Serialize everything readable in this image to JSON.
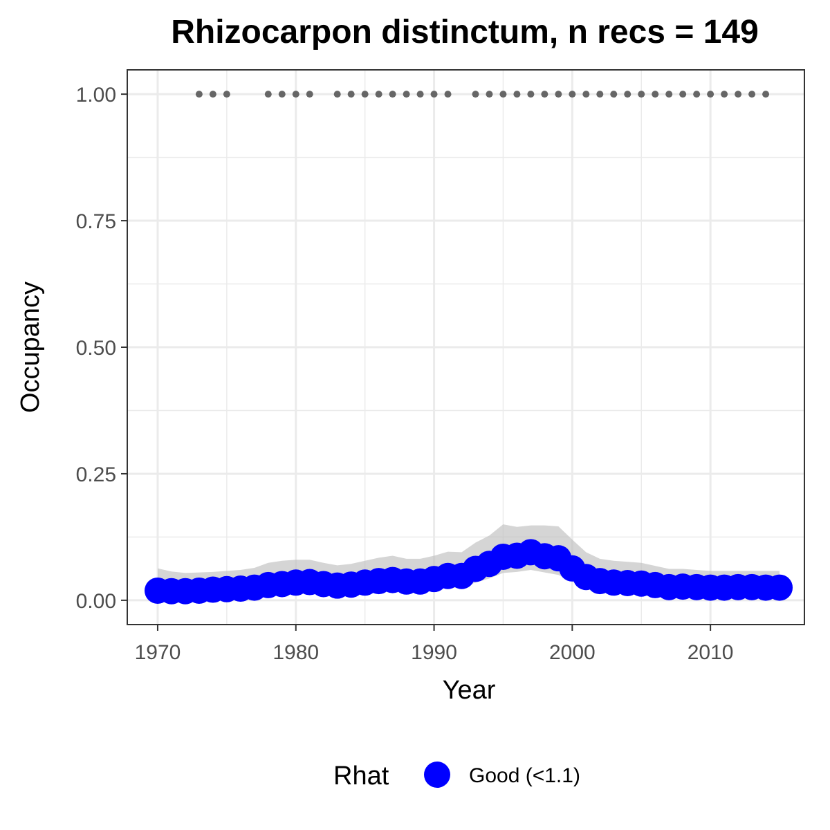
{
  "chart_data": {
    "type": "line",
    "title": "Rhizocarpon distinctum, n recs = 149",
    "xlabel": "Year",
    "ylabel": "Occupancy",
    "xlim": [
      1967.8,
      2016.8
    ],
    "ylim": [
      -0.048,
      1.048
    ],
    "x_ticks": [
      1970,
      1980,
      1990,
      2000,
      2010
    ],
    "x_tick_labels": [
      "1970",
      "1980",
      "1990",
      "2000",
      "2010"
    ],
    "y_ticks": [
      0,
      0.25,
      0.5,
      0.75,
      1.0
    ],
    "y_tick_labels": [
      "0.00",
      "0.25",
      "0.50",
      "0.75",
      "1.00"
    ],
    "grid": true,
    "legend": {
      "title": "Rhat",
      "position": "bottom",
      "entries": [
        {
          "label": "Good (<1.1)",
          "color": "#0000ff"
        }
      ]
    },
    "colors": {
      "points": "#0000ff",
      "ribbon": "#bebebe",
      "records": "#666666",
      "panel_border": "#333333",
      "grid": "#ebebeb"
    },
    "series": [
      {
        "name": "Good (<1.1)",
        "x": [
          1970,
          1971,
          1972,
          1973,
          1974,
          1975,
          1976,
          1977,
          1978,
          1979,
          1980,
          1981,
          1982,
          1983,
          1984,
          1985,
          1986,
          1987,
          1988,
          1989,
          1990,
          1991,
          1992,
          1993,
          1994,
          1995,
          1996,
          1997,
          1998,
          1999,
          2000,
          2001,
          2002,
          2003,
          2004,
          2005,
          2006,
          2007,
          2008,
          2009,
          2010,
          2011,
          2012,
          2013,
          2014,
          2015
        ],
        "mean": [
          0.019,
          0.018,
          0.018,
          0.019,
          0.021,
          0.022,
          0.023,
          0.025,
          0.03,
          0.032,
          0.035,
          0.036,
          0.032,
          0.029,
          0.031,
          0.035,
          0.038,
          0.04,
          0.037,
          0.037,
          0.042,
          0.048,
          0.048,
          0.062,
          0.072,
          0.086,
          0.088,
          0.095,
          0.087,
          0.083,
          0.063,
          0.046,
          0.038,
          0.035,
          0.034,
          0.033,
          0.03,
          0.026,
          0.027,
          0.026,
          0.025,
          0.025,
          0.026,
          0.026,
          0.025,
          0.025
        ],
        "lower": [
          0.008,
          0.008,
          0.008,
          0.008,
          0.009,
          0.01,
          0.01,
          0.011,
          0.014,
          0.015,
          0.017,
          0.017,
          0.015,
          0.014,
          0.015,
          0.017,
          0.019,
          0.02,
          0.019,
          0.019,
          0.022,
          0.025,
          0.025,
          0.035,
          0.043,
          0.054,
          0.056,
          0.06,
          0.055,
          0.05,
          0.037,
          0.025,
          0.02,
          0.018,
          0.017,
          0.016,
          0.014,
          0.012,
          0.012,
          0.012,
          0.011,
          0.011,
          0.012,
          0.012,
          0.011,
          0.011
        ],
        "upper": [
          0.063,
          0.057,
          0.054,
          0.055,
          0.056,
          0.058,
          0.06,
          0.064,
          0.074,
          0.078,
          0.08,
          0.08,
          0.074,
          0.069,
          0.072,
          0.078,
          0.084,
          0.088,
          0.082,
          0.082,
          0.088,
          0.096,
          0.095,
          0.114,
          0.128,
          0.15,
          0.145,
          0.148,
          0.148,
          0.146,
          0.12,
          0.095,
          0.082,
          0.078,
          0.076,
          0.074,
          0.068,
          0.062,
          0.062,
          0.06,
          0.058,
          0.058,
          0.058,
          0.058,
          0.058,
          0.058
        ]
      }
    ],
    "records": {
      "y": 1.0,
      "years": [
        1973,
        1974,
        1975,
        1978,
        1979,
        1980,
        1981,
        1983,
        1984,
        1985,
        1986,
        1987,
        1988,
        1989,
        1990,
        1991,
        1993,
        1994,
        1995,
        1996,
        1997,
        1998,
        1999,
        2000,
        2001,
        2002,
        2003,
        2004,
        2005,
        2006,
        2007,
        2008,
        2009,
        2010,
        2011,
        2012,
        2013,
        2014
      ]
    }
  }
}
